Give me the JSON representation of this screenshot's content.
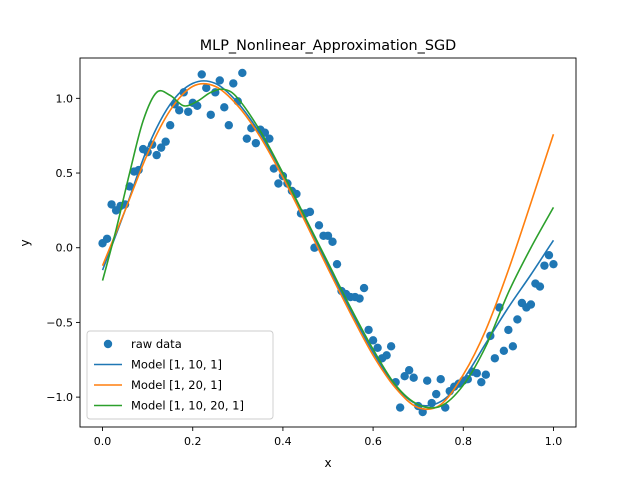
{
  "chart_data": {
    "type": "scatter",
    "title": "MLP_Nonlinear_Approximation_SGD",
    "xlabel": "x",
    "ylabel": "y",
    "xlim": [
      -0.05,
      1.05
    ],
    "ylim": [
      -1.2,
      1.27
    ],
    "xticks": [
      {
        "value": 0.0,
        "label": "0.0"
      },
      {
        "value": 0.2,
        "label": "0.2"
      },
      {
        "value": 0.4,
        "label": "0.4"
      },
      {
        "value": 0.6,
        "label": "0.6"
      },
      {
        "value": 0.8,
        "label": "0.8"
      },
      {
        "value": 1.0,
        "label": "1.0"
      }
    ],
    "yticks": [
      {
        "value": 1.0,
        "label": "1.0"
      },
      {
        "value": 0.5,
        "label": "0.5"
      },
      {
        "value": 0.0,
        "label": "0.0"
      },
      {
        "value": -0.5,
        "label": "−0.5"
      },
      {
        "value": -1.0,
        "label": "−1.0"
      }
    ],
    "grid": false,
    "legend_position": "lower-left",
    "scatter": {
      "name": "raw data",
      "color": "#1f77b4",
      "points": [
        [
          0.0,
          0.03
        ],
        [
          0.01,
          0.06
        ],
        [
          0.02,
          0.29
        ],
        [
          0.03,
          0.25
        ],
        [
          0.04,
          0.28
        ],
        [
          0.05,
          0.29
        ],
        [
          0.06,
          0.41
        ],
        [
          0.07,
          0.51
        ],
        [
          0.08,
          0.52
        ],
        [
          0.09,
          0.66
        ],
        [
          0.1,
          0.64
        ],
        [
          0.11,
          0.69
        ],
        [
          0.12,
          0.62
        ],
        [
          0.13,
          0.67
        ],
        [
          0.14,
          0.71
        ],
        [
          0.15,
          0.82
        ],
        [
          0.16,
          0.96
        ],
        [
          0.17,
          0.92
        ],
        [
          0.18,
          1.04
        ],
        [
          0.19,
          0.91
        ],
        [
          0.2,
          0.97
        ],
        [
          0.21,
          0.95
        ],
        [
          0.22,
          1.16
        ],
        [
          0.23,
          1.07
        ],
        [
          0.24,
          0.89
        ],
        [
          0.25,
          1.04
        ],
        [
          0.26,
          1.12
        ],
        [
          0.27,
          0.94
        ],
        [
          0.28,
          0.82
        ],
        [
          0.29,
          1.1
        ],
        [
          0.3,
          0.98
        ],
        [
          0.31,
          1.17
        ],
        [
          0.32,
          0.73
        ],
        [
          0.33,
          0.8
        ],
        [
          0.34,
          0.7
        ],
        [
          0.35,
          0.79
        ],
        [
          0.36,
          0.77
        ],
        [
          0.37,
          0.73
        ],
        [
          0.38,
          0.53
        ],
        [
          0.39,
          0.43
        ],
        [
          0.4,
          0.48
        ],
        [
          0.41,
          0.43
        ],
        [
          0.42,
          0.38
        ],
        [
          0.43,
          0.36
        ],
        [
          0.44,
          0.23
        ],
        [
          0.45,
          0.23
        ],
        [
          0.46,
          0.24
        ],
        [
          0.47,
          0.0
        ],
        [
          0.48,
          0.15
        ],
        [
          0.49,
          0.08
        ],
        [
          0.5,
          0.08
        ],
        [
          0.51,
          0.04
        ],
        [
          0.52,
          -0.11
        ],
        [
          0.53,
          -0.29
        ],
        [
          0.54,
          -0.31
        ],
        [
          0.55,
          -0.33
        ],
        [
          0.56,
          -0.33
        ],
        [
          0.57,
          -0.34
        ],
        [
          0.58,
          -0.27
        ],
        [
          0.59,
          -0.55
        ],
        [
          0.6,
          -0.62
        ],
        [
          0.61,
          -0.67
        ],
        [
          0.62,
          -0.74
        ],
        [
          0.63,
          -0.72
        ],
        [
          0.64,
          -0.66
        ],
        [
          0.65,
          -0.9
        ],
        [
          0.66,
          -1.07
        ],
        [
          0.67,
          -0.86
        ],
        [
          0.68,
          -0.82
        ],
        [
          0.69,
          -0.87
        ],
        [
          0.7,
          -1.06
        ],
        [
          0.71,
          -1.1
        ],
        [
          0.72,
          -0.89
        ],
        [
          0.73,
          -1.04
        ],
        [
          0.74,
          -0.98
        ],
        [
          0.75,
          -0.88
        ],
        [
          0.76,
          -1.07
        ],
        [
          0.77,
          -0.96
        ],
        [
          0.78,
          -0.93
        ],
        [
          0.79,
          -0.91
        ],
        [
          0.8,
          -0.89
        ],
        [
          0.81,
          -0.88
        ],
        [
          0.82,
          -0.83
        ],
        [
          0.83,
          -0.84
        ],
        [
          0.84,
          -0.9
        ],
        [
          0.85,
          -0.85
        ],
        [
          0.86,
          -0.59
        ],
        [
          0.87,
          -0.74
        ],
        [
          0.88,
          -0.4
        ],
        [
          0.89,
          -0.69
        ],
        [
          0.9,
          -0.55
        ],
        [
          0.91,
          -0.66
        ],
        [
          0.92,
          -0.48
        ],
        [
          0.93,
          -0.37
        ],
        [
          0.94,
          -0.4
        ],
        [
          0.95,
          -0.38
        ],
        [
          0.96,
          -0.24
        ],
        [
          0.97,
          -0.26
        ],
        [
          0.98,
          -0.12
        ],
        [
          0.99,
          -0.05
        ],
        [
          1.0,
          -0.11
        ]
      ]
    },
    "series": [
      {
        "name": "Model [1, 10, 1]",
        "color": "#1f77b4",
        "x": [
          0.0,
          0.05,
          0.1,
          0.15,
          0.2,
          0.25,
          0.3,
          0.35,
          0.4,
          0.45,
          0.5,
          0.55,
          0.6,
          0.65,
          0.7,
          0.75,
          0.8,
          0.85,
          0.9,
          0.95,
          1.0
        ],
        "y": [
          -0.15,
          0.25,
          0.67,
          0.96,
          1.1,
          1.1,
          0.97,
          0.76,
          0.49,
          0.19,
          -0.12,
          -0.42,
          -0.7,
          -0.93,
          -1.05,
          -1.03,
          -0.88,
          -0.64,
          -0.4,
          -0.18,
          0.05
        ]
      },
      {
        "name": "Model [1, 20, 1]",
        "color": "#ff7f0e",
        "x": [
          0.0,
          0.05,
          0.1,
          0.15,
          0.2,
          0.25,
          0.3,
          0.35,
          0.4,
          0.45,
          0.5,
          0.55,
          0.6,
          0.65,
          0.7,
          0.75,
          0.8,
          0.85,
          0.9,
          0.95,
          1.0
        ],
        "y": [
          -0.12,
          0.25,
          0.63,
          0.92,
          1.08,
          1.08,
          0.95,
          0.74,
          0.47,
          0.17,
          -0.14,
          -0.44,
          -0.72,
          -0.94,
          -1.07,
          -1.05,
          -0.85,
          -0.55,
          -0.15,
          0.3,
          0.76
        ]
      },
      {
        "name": "Model [1, 10, 20, 1]",
        "color": "#2ca02c",
        "x": [
          0.0,
          0.03,
          0.06,
          0.09,
          0.12,
          0.15,
          0.18,
          0.21,
          0.24,
          0.27,
          0.3,
          0.35,
          0.4,
          0.45,
          0.5,
          0.55,
          0.6,
          0.65,
          0.7,
          0.75,
          0.8,
          0.85,
          0.9,
          0.95,
          1.0
        ],
        "y": [
          -0.22,
          0.12,
          0.5,
          0.85,
          1.04,
          1.02,
          0.95,
          0.98,
          1.04,
          1.06,
          1.0,
          0.78,
          0.5,
          0.2,
          -0.1,
          -0.4,
          -0.68,
          -0.92,
          -1.05,
          -1.06,
          -0.92,
          -0.66,
          -0.3,
          0.0,
          0.27
        ]
      }
    ]
  }
}
